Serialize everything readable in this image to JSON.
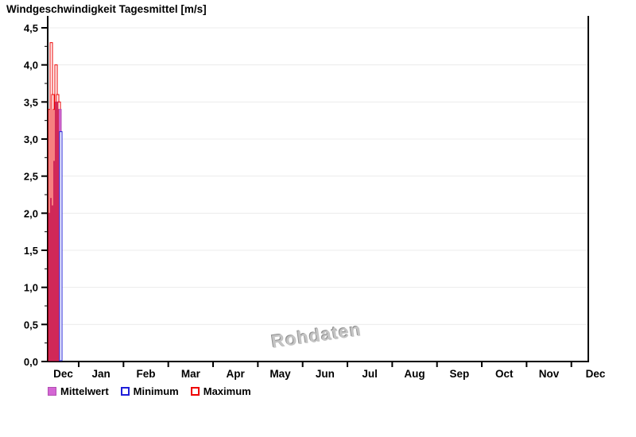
{
  "title": "Windgeschwindigkeit Tagesmittel [m/s]",
  "watermark": "Rohdaten",
  "legend": {
    "items": [
      {
        "label": "Mittelwert",
        "style": "fill-mean"
      },
      {
        "label": "Minimum",
        "style": "outline-min"
      },
      {
        "label": "Maximum",
        "style": "outline-max"
      }
    ]
  },
  "colors": {
    "mean_fill": "#d466d4",
    "mean_border": "#b14fb1",
    "min_stroke": "#1f1fd9",
    "max_stroke": "#ee0000",
    "axis": "#000000",
    "grid": "#ececec",
    "bar_fill_white": "#ffffff"
  },
  "chart_data": {
    "type": "bar",
    "title": "Windgeschwindigkeit Tagesmittel [m/s]",
    "xlabel": "",
    "ylabel": "",
    "ylim": [
      0,
      4.5
    ],
    "ytick_step": 0.5,
    "ytick_minor_step": 0.25,
    "ytick_labels": [
      "0,0",
      "0,5",
      "1,0",
      "1,5",
      "2,0",
      "2,5",
      "3,0",
      "3,5",
      "4,0",
      "4,5"
    ],
    "grid": true,
    "legend_position": "bottom",
    "x_month_labels": [
      "Dec",
      "Jan",
      "Feb",
      "Mar",
      "Apr",
      "May",
      "Jun",
      "Jul",
      "Aug",
      "Sep",
      "Oct",
      "Nov",
      "Dec"
    ],
    "note": "daily min/mean/max wind-speed bars, data only for first days of December at far left",
    "series": [
      {
        "name": "Mittelwert",
        "values": [
          2.0,
          2.2,
          2.1,
          2.7,
          3.5,
          3.5,
          3.4
        ]
      },
      {
        "name": "Minimum",
        "values": [
          1.4,
          1.2,
          1.5,
          2.2,
          2.8,
          3.1,
          3.1
        ]
      },
      {
        "name": "Maximum",
        "values": [
          3.4,
          4.3,
          3.6,
          3.4,
          4.0,
          3.6,
          3.5
        ]
      }
    ]
  }
}
